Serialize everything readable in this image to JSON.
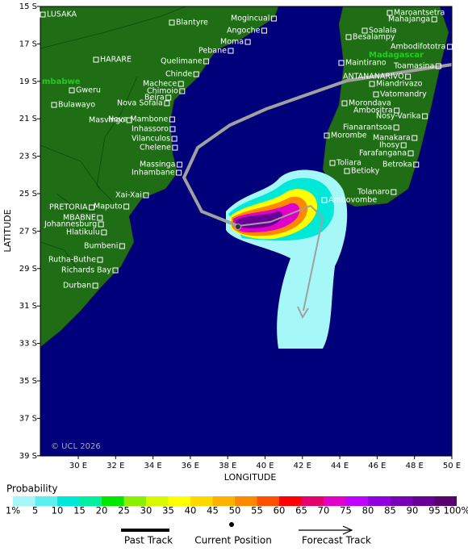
{
  "map": {
    "copyright": "© UCL 2026",
    "x_axis_title": "LONGITUDE",
    "y_axis_title": "LATITUDE",
    "lat_ticks": [
      "15 S",
      "17 S",
      "19 S",
      "21 S",
      "23 S",
      "25 S",
      "27 S",
      "29 S",
      "31 S",
      "33 S",
      "35 S",
      "37 S",
      "39 S"
    ],
    "lon_ticks": [
      "30 E",
      "32 E",
      "34 E",
      "36 E",
      "38 E",
      "40 E",
      "42 E",
      "44 E",
      "46 E",
      "48 E",
      "50 E"
    ],
    "regions": [
      "mbabwe",
      "Madagascar"
    ],
    "places": [
      "LUSAKA",
      "Blantyre",
      "Mogincual",
      "Maroantsetra",
      "Mahajanga",
      "Soalala",
      "Besalampy",
      "Ambodifototra",
      "Angoche",
      "Moma",
      "Pebane",
      "HARARE",
      "Quelimane",
      "Maintirano",
      "Toamasina",
      "Chinde",
      "ANTANANARIVO",
      "Miandrivazo",
      "Machece",
      "Gweru",
      "Chimoio",
      "Beira",
      "Vatomandry",
      "Bulawayo",
      "Nova Sofala",
      "Morondava",
      "Ambositra",
      "Masvingo",
      "Nova Mambone",
      "Nosy-Varika",
      "Fianarantsoa",
      "Inhassoro",
      "Morombe",
      "Manakara",
      "Vilanculos",
      "Ihosy",
      "Chelene",
      "Farafangana",
      "Toliara",
      "Betroka",
      "Massinga",
      "Betioky",
      "Inhambane",
      "Tolanaro",
      "Xai-Xai",
      "Ambovombe",
      "PRETORIA",
      "Maputo",
      "MBABNE",
      "Johannesburg",
      "Hlatikulu",
      "Bumbeni",
      "Rutha-Buthe",
      "Richards Bay",
      "Durban"
    ]
  },
  "colorbar": {
    "title": "Probability",
    "labels": [
      "1%",
      "5",
      "10",
      "15",
      "20",
      "25",
      "30",
      "35",
      "40",
      "45",
      "50",
      "55",
      "60",
      "65",
      "70",
      "75",
      "80",
      "85",
      "90",
      "95",
      "100%"
    ],
    "colors": [
      "#a6f7f7",
      "#5cf0f0",
      "#00e8d8",
      "#00f0a0",
      "#00e800",
      "#88f000",
      "#d8f800",
      "#ffff00",
      "#ffd800",
      "#ffb000",
      "#ff8800",
      "#ff5000",
      "#ff0000",
      "#e8006a",
      "#e000c8",
      "#c000ff",
      "#9000e0",
      "#7800b8",
      "#680098",
      "#580070"
    ]
  },
  "legend": {
    "past": "Past Track",
    "current": "Current Position",
    "forecast": "Forecast Track"
  }
}
